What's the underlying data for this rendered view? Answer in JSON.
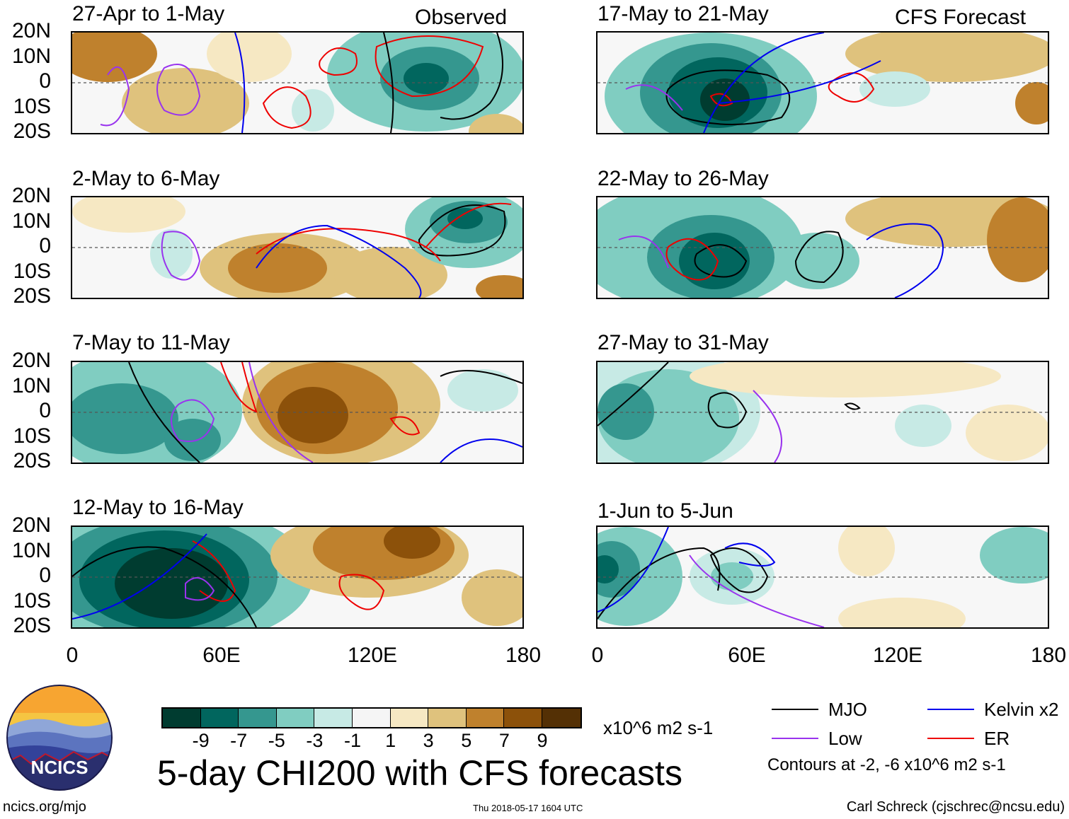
{
  "header": {
    "observed_label": "Observed",
    "forecast_label": "CFS Forecast"
  },
  "panels": [
    {
      "title": "27-Apr to 1-May",
      "column": "observed"
    },
    {
      "title": "2-May to 6-May",
      "column": "observed"
    },
    {
      "title": "7-May to 11-May",
      "column": "observed"
    },
    {
      "title": "12-May to 16-May",
      "column": "observed"
    },
    {
      "title": "17-May to 21-May",
      "column": "forecast"
    },
    {
      "title": "22-May to 26-May",
      "column": "forecast"
    },
    {
      "title": "27-May to 31-May",
      "column": "forecast"
    },
    {
      "title": "1-Jun to 5-Jun",
      "column": "forecast"
    }
  ],
  "axes": {
    "lat_labels": [
      "20N",
      "10N",
      "0",
      "10S",
      "20S"
    ],
    "lon_labels": [
      "0",
      "60E",
      "120E",
      "180"
    ]
  },
  "colorbar": {
    "colors": [
      "#003c30",
      "#01665e",
      "#35978f",
      "#80cdc1",
      "#c7eae5",
      "#f5f5f5",
      "#f6e8c3",
      "#dfc27d",
      "#bf812d",
      "#8c510a",
      "#543005"
    ],
    "ticks": [
      "-9",
      "-7",
      "-5",
      "-3",
      "-1",
      "1",
      "3",
      "5",
      "7",
      "9"
    ],
    "units": "x10^6 m2 s-1"
  },
  "title": "5-day CHI200 with CFS forecasts",
  "legend": {
    "items": [
      {
        "label": "MJO",
        "color": "#000000"
      },
      {
        "label": "Kelvin x2",
        "color": "#0000ee"
      },
      {
        "label": "Low",
        "color": "#9933ee"
      },
      {
        "label": "ER",
        "color": "#ee0000"
      }
    ],
    "note": "Contours at -2, -6 x10^6 m2 s-1"
  },
  "logo": {
    "text": "NCICS"
  },
  "footer": {
    "url": "ncics.org/mjo",
    "timestamp": "Thu 2018-05-17 1604 UTC",
    "author": "Carl Schreck (cjschrec@ncsu.edu)"
  }
}
